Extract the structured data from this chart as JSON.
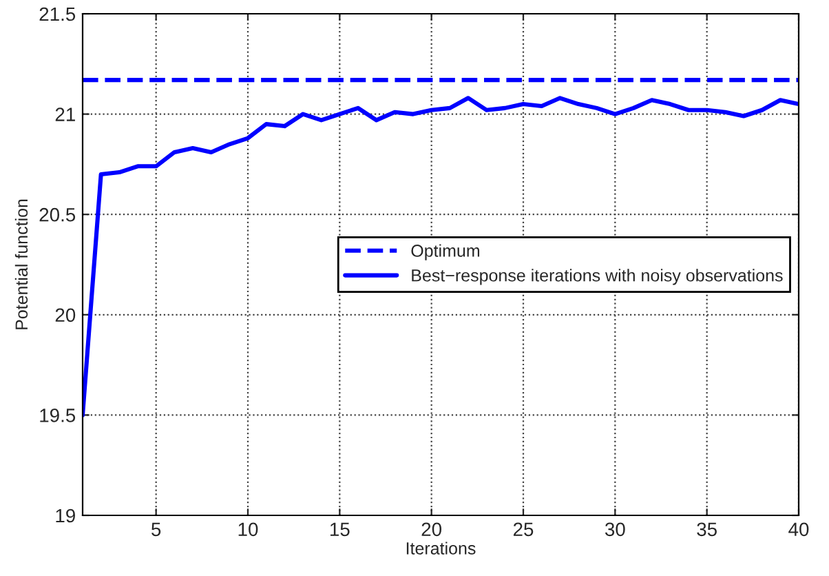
{
  "chart_data": {
    "type": "line",
    "xlabel": "Iterations",
    "ylabel": "Potential function",
    "xlim": [
      1,
      40
    ],
    "xticks": [
      5,
      10,
      15,
      20,
      25,
      30,
      35,
      40
    ],
    "ylim": [
      19,
      21.5
    ],
    "yticks": [
      19,
      19.5,
      20,
      20.5,
      21,
      21.5
    ],
    "grid": true,
    "legend": "center right",
    "marker": "none",
    "series": [
      {
        "name": "Optimum",
        "color": "#0000ff",
        "line_style": "dashed",
        "x": [
          1,
          40
        ],
        "values": [
          21.17,
          21.17
        ]
      },
      {
        "name": "Best−response iterations with noisy observations",
        "color": "#0000ff",
        "line_style": "solid",
        "x": [
          1,
          2,
          3,
          4,
          5,
          6,
          7,
          8,
          9,
          10,
          11,
          12,
          13,
          14,
          15,
          16,
          17,
          18,
          19,
          20,
          21,
          22,
          23,
          24,
          25,
          26,
          27,
          28,
          29,
          30,
          31,
          32,
          33,
          34,
          35,
          36,
          37,
          38,
          39,
          40
        ],
        "values": [
          19.5,
          20.7,
          20.71,
          20.74,
          20.74,
          20.81,
          20.83,
          20.81,
          20.85,
          20.88,
          20.95,
          20.94,
          21.0,
          20.97,
          21.0,
          21.03,
          20.97,
          21.01,
          21.0,
          21.02,
          21.03,
          21.08,
          21.02,
          21.03,
          21.05,
          21.04,
          21.08,
          21.05,
          21.03,
          21.0,
          21.03,
          21.07,
          21.05,
          21.02,
          21.02,
          21.01,
          20.99,
          21.02,
          21.07,
          21.05
        ]
      }
    ]
  }
}
